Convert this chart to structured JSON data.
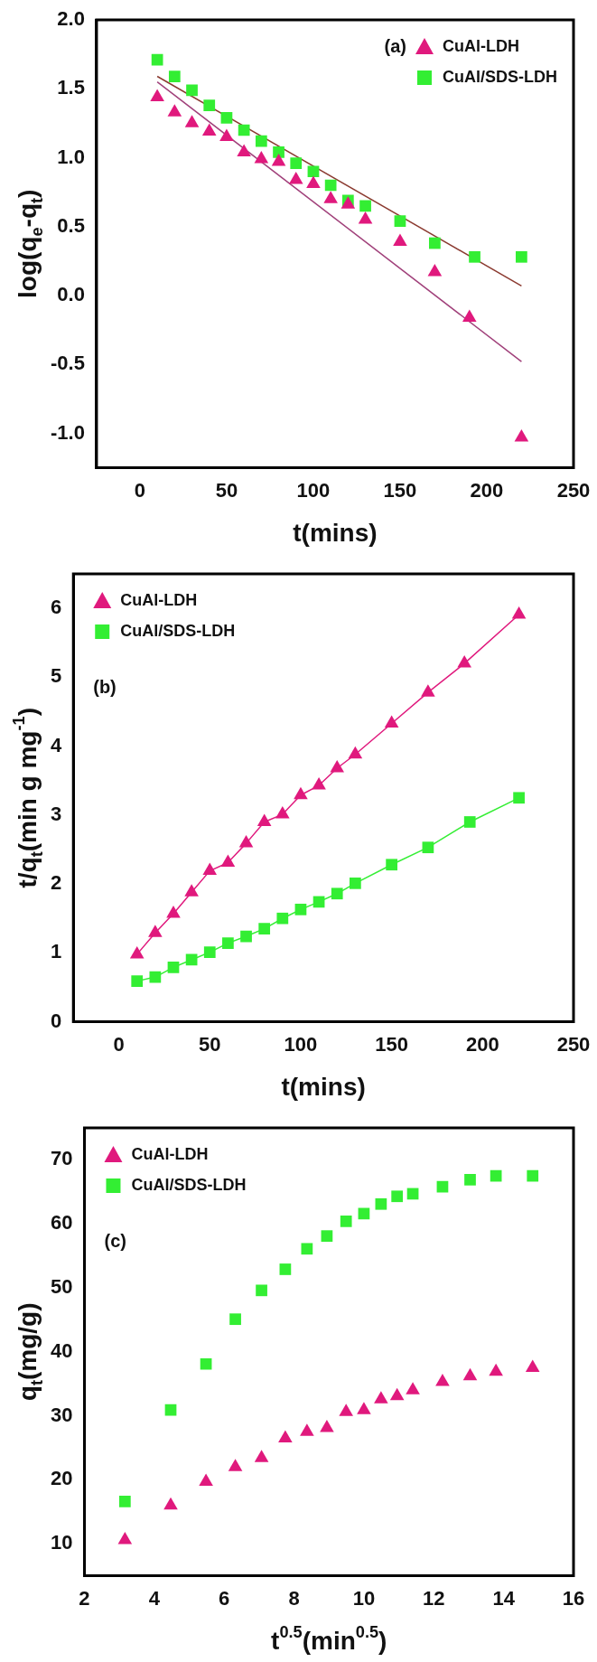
{
  "chart_data": [
    {
      "type": "scatter",
      "xlabel": "t(mins)",
      "ylabel": "log(q$_{e}$-q$_{t}$)",
      "annotations": [
        "(a)"
      ],
      "legend": "top right",
      "grid": false,
      "xlim": [
        -25,
        250
      ],
      "xticks": [
        0,
        50,
        100,
        150,
        200,
        250
      ],
      "ylim": [
        -1.25,
        2.0
      ],
      "yticks": [
        {
          "value": -1,
          "label": "-1.0"
        },
        {
          "value": -0.5,
          "label": "-0.5"
        },
        {
          "value": 0,
          "label": "0.0"
        },
        {
          "value": 0.5,
          "label": "0.5"
        },
        {
          "value": 1,
          "label": "1.0"
        },
        {
          "value": 1.5,
          "label": "1.5"
        },
        {
          "value": 2,
          "label": "2.0"
        }
      ],
      "series": [
        {
          "type": "line",
          "marker": "none",
          "color": "#a0407a",
          "x": [
            10,
            220
          ],
          "values": [
            1.55,
            -0.48
          ]
        },
        {
          "type": "line",
          "marker": "none",
          "color": "#8b3a30",
          "x": [
            10,
            220
          ],
          "values": [
            1.59,
            0.07
          ]
        },
        {
          "name": "CuAl-LDH",
          "marker": "triangle",
          "color": "#e0197d",
          "x": [
            10,
            20,
            30,
            40,
            50,
            60,
            70,
            80,
            90,
            100,
            110,
            120,
            130,
            150,
            170,
            190,
            220
          ],
          "values": [
            1.44,
            1.33,
            1.25,
            1.19,
            1.15,
            1.04,
            0.99,
            0.97,
            0.84,
            0.81,
            0.7,
            0.66,
            0.55,
            0.39,
            0.17,
            -0.16,
            -1.03
          ]
        },
        {
          "name": "CuAl/SDS-LDH",
          "marker": "square",
          "color": "#33ee33",
          "x": [
            10,
            20,
            30,
            40,
            50,
            60,
            70,
            80,
            90,
            100,
            110,
            120,
            130,
            150,
            170,
            193,
            220
          ],
          "values": [
            1.71,
            1.59,
            1.49,
            1.38,
            1.29,
            1.2,
            1.12,
            1.04,
            0.96,
            0.9,
            0.8,
            0.69,
            0.65,
            0.54,
            0.38,
            0.28,
            0.28
          ]
        }
      ]
    },
    {
      "type": "line",
      "xlabel": "t(mins)",
      "ylabel": "t/q$_{t}$(min g mg$^{-1}$)",
      "annotations": [
        "(b)"
      ],
      "legend": "top left",
      "grid": false,
      "line_style": "solid",
      "xlim": [
        -25,
        250
      ],
      "xticks": [
        0,
        50,
        100,
        150,
        200,
        250
      ],
      "ylim": [
        0,
        6.5
      ],
      "yticks": [
        0,
        1,
        2,
        3,
        4,
        5,
        6
      ],
      "series": [
        {
          "name": "CuAl-LDH",
          "marker": "triangle",
          "color": "#e0197d",
          "x": [
            10,
            20,
            30,
            40,
            50,
            60,
            70,
            80,
            90,
            100,
            110,
            120,
            130,
            150,
            170,
            190,
            220
          ],
          "values": [
            0.98,
            1.29,
            1.57,
            1.88,
            2.19,
            2.31,
            2.59,
            2.9,
            3.01,
            3.29,
            3.43,
            3.68,
            3.88,
            4.33,
            4.78,
            5.2,
            5.91
          ]
        },
        {
          "name": "CuAl/SDS-LDH",
          "marker": "square",
          "color": "#33ee33",
          "x": [
            10,
            20,
            30,
            40,
            50,
            60,
            70,
            80,
            90,
            100,
            110,
            120,
            130,
            150,
            170,
            193,
            220
          ],
          "values": [
            0.59,
            0.65,
            0.79,
            0.9,
            1.01,
            1.14,
            1.24,
            1.35,
            1.5,
            1.63,
            1.74,
            1.86,
            2.01,
            2.28,
            2.53,
            2.9,
            3.25
          ]
        }
      ]
    },
    {
      "type": "scatter",
      "xlabel": "t$^{0.5}$(min$^{0.5}$)",
      "ylabel": "q$_{t}$(mg/g)",
      "annotations": [
        "(c)"
      ],
      "legend": "top left",
      "grid": false,
      "xlim": [
        2,
        16
      ],
      "xticks": [
        2,
        4,
        6,
        8,
        10,
        12,
        14,
        16
      ],
      "ylim": [
        5,
        75
      ],
      "yticks": [
        10,
        20,
        30,
        40,
        50,
        60,
        70
      ],
      "x": [
        3.16,
        4.47,
        5.48,
        6.32,
        7.07,
        7.75,
        8.37,
        8.94,
        9.49,
        10,
        10.49,
        10.95,
        11.4,
        12.25,
        13.04,
        13.78,
        14.83
      ],
      "series": [
        {
          "name": "CuAl-LDH",
          "marker": "triangle",
          "color": "#e0197d",
          "values": [
            10.6,
            16.0,
            19.7,
            22.0,
            23.4,
            26.5,
            27.5,
            28.1,
            30.6,
            30.9,
            32.6,
            33.1,
            34.0,
            35.3,
            36.2,
            36.9,
            37.5
          ]
        },
        {
          "name": "CuAl/SDS-LDH",
          "marker": "square",
          "color": "#33ee33",
          "values": [
            16.6,
            30.9,
            38.1,
            45.1,
            49.6,
            52.9,
            56.1,
            58.1,
            60.4,
            61.6,
            63.1,
            64.3,
            64.7,
            65.8,
            66.9,
            67.5,
            67.5
          ]
        }
      ]
    }
  ]
}
